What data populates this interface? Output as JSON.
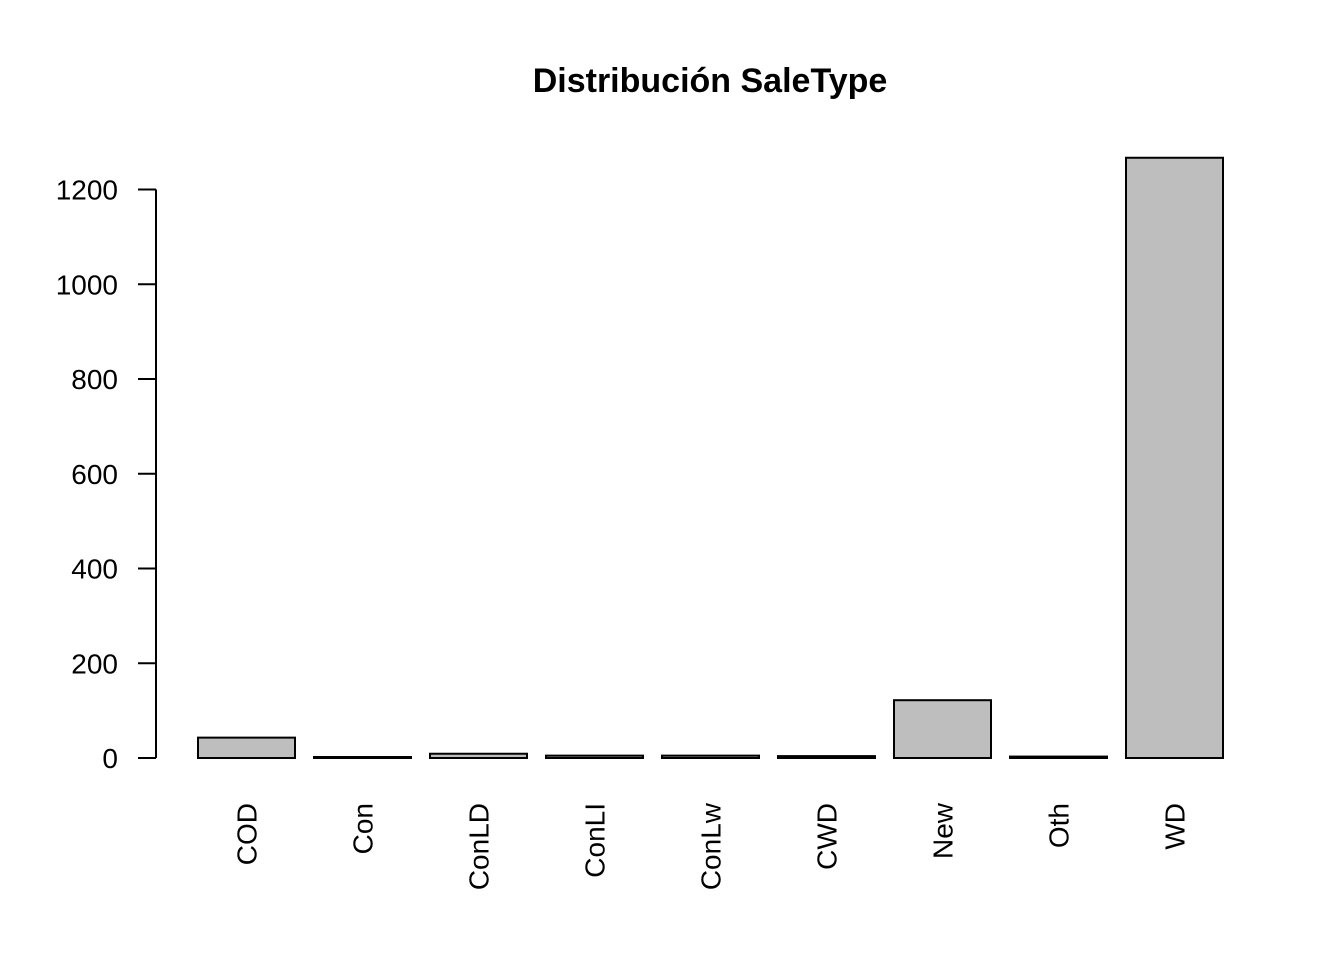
{
  "chart_data": {
    "type": "bar",
    "title": "Distribución SaleType",
    "xlabel": "",
    "ylabel": "",
    "categories": [
      "COD",
      "Con",
      "ConLD",
      "ConLI",
      "ConLw",
      "CWD",
      "New",
      "Oth",
      "WD"
    ],
    "values": [
      43,
      2,
      9,
      5,
      5,
      4,
      122,
      3,
      1267
    ],
    "ylim": [
      0,
      1200
    ],
    "yticks": [
      0,
      200,
      400,
      600,
      800,
      1000,
      1200
    ],
    "grid": false,
    "legend": "none",
    "bar_color": "#bebebe",
    "label_orientation": "vertical"
  }
}
